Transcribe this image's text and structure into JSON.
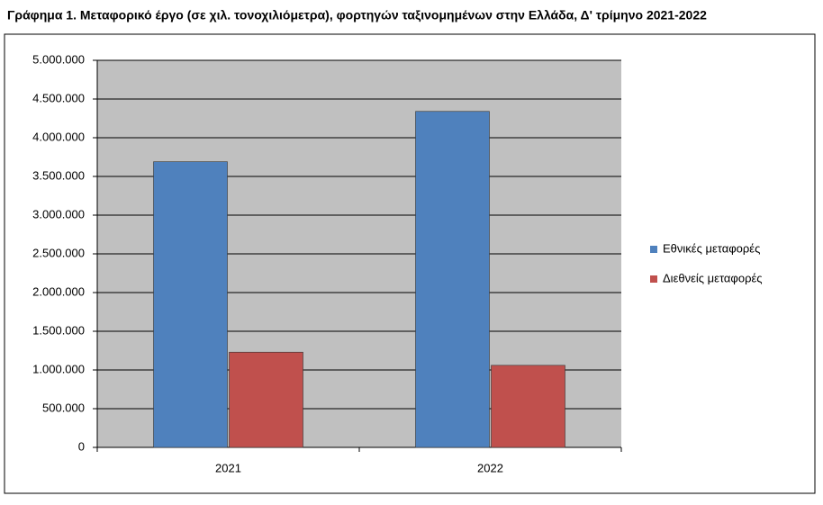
{
  "chart_data": {
    "type": "bar",
    "title": "Γράφημα 1. Μεταφορικό έργο (σε χιλ. τονοχιλιόμετρα), φορτηγών ταξινομημένων στην Ελλάδα, Δ' τρίμηνο 2021-2022",
    "categories": [
      "2021",
      "2022"
    ],
    "series": [
      {
        "name": "Εθνικές μεταφορές",
        "color": "#4f81bd",
        "values": [
          3690000,
          4340000
        ]
      },
      {
        "name": "Διεθνείς μεταφορές",
        "color": "#c0504d",
        "values": [
          1230000,
          1060000
        ]
      }
    ],
    "ylim": [
      0,
      5000000
    ],
    "yticks": [
      0,
      {
        "value": 500000,
        "label": "500.000"
      },
      {
        "value": 1000000,
        "label": "1.000.000"
      },
      {
        "value": 1500000,
        "label": "1.500.000"
      },
      {
        "value": 2000000,
        "label": "2.000.000"
      },
      {
        "value": 2500000,
        "label": "2.500.000"
      },
      {
        "value": 3000000,
        "label": "3.000.000"
      },
      {
        "value": 3500000,
        "label": "3.500.000"
      },
      {
        "value": 4000000,
        "label": "4.000.000"
      },
      {
        "value": 4500000,
        "label": "4.500.000"
      },
      {
        "value": 5000000,
        "label": "5.000.000"
      }
    ],
    "grid": true,
    "legend": "right"
  }
}
